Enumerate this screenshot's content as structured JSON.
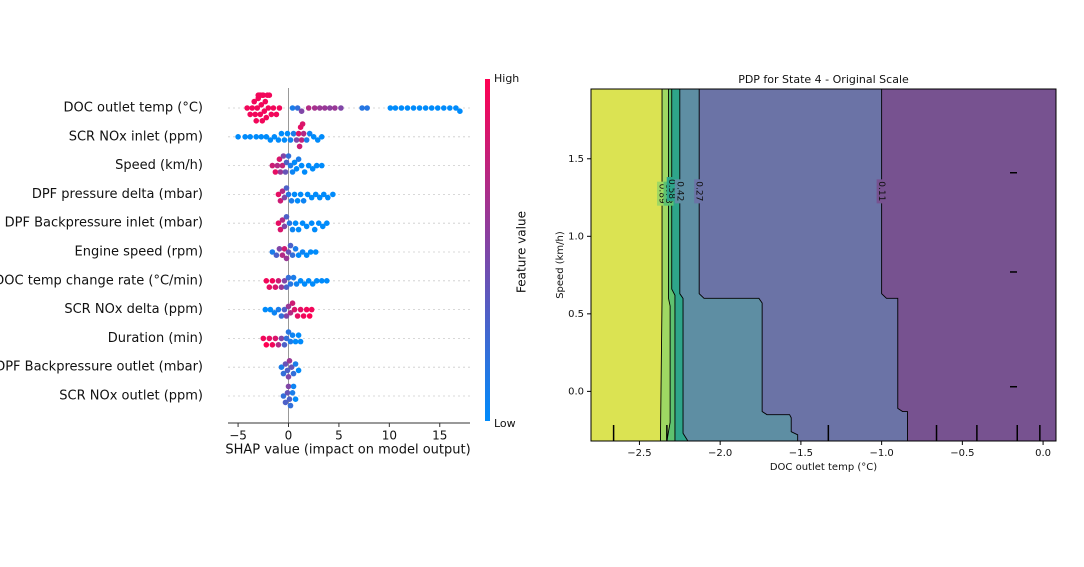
{
  "chart_data": [
    {
      "type": "beeswarm",
      "xlabel": "SHAP value (impact on model output)",
      "xlim": [
        -6,
        18
      ],
      "xticks": [
        {
          "value": -5,
          "label": "−5"
        },
        0,
        5,
        10,
        15
      ],
      "colorbar": {
        "label": "Feature value",
        "high": "High",
        "low": "Low",
        "low_color": "#008bfb",
        "high_color": "#ff0052"
      },
      "rows": [
        {
          "name": "DOC outlet temp (°C)",
          "values": [
            -4.1,
            -3.8,
            -3.6,
            -3.4,
            -3.3,
            -3.2,
            -3.1,
            -3.0,
            -3.0,
            -2.9,
            -2.8,
            -2.8,
            -2.7,
            -2.6,
            -2.6,
            -2.5,
            -2.4,
            -2.3,
            -2.2,
            -2.1,
            -2.0,
            -1.9,
            -1.7,
            -1.5,
            -1.2,
            -0.9,
            0.4,
            0.9,
            1.3,
            2.0,
            2.6,
            3.1,
            3.6,
            4.1,
            4.6,
            5.2,
            7.3,
            7.8,
            10.1,
            10.6,
            11.2,
            11.8,
            12.4,
            13.0,
            13.6,
            14.2,
            14.8,
            15.4,
            16.0,
            16.6,
            17.0
          ],
          "feature_values": [
            0.95,
            0.95,
            0.95,
            0.95,
            0.95,
            0.95,
            0.95,
            0.95,
            0.95,
            0.95,
            0.95,
            0.95,
            0.95,
            0.95,
            0.95,
            0.95,
            0.95,
            0.95,
            0.95,
            0.95,
            0.95,
            0.95,
            0.95,
            0.95,
            0.95,
            0.95,
            0.1,
            0.2,
            0.5,
            0.7,
            0.65,
            0.6,
            0.6,
            0.55,
            0.6,
            0.5,
            0.15,
            0.15,
            0,
            0,
            0,
            0,
            0,
            0,
            0,
            0,
            0,
            0,
            0,
            0,
            0
          ]
        },
        {
          "name": "SCR NOx inlet (ppm)",
          "values": [
            -5.0,
            -4.3,
            -3.8,
            -3.2,
            -2.7,
            -2.2,
            -1.8,
            -1.4,
            -1.0,
            -0.7,
            -0.4,
            -0.1,
            0.2,
            0.5,
            0.8,
            1.0,
            1.1,
            1.2,
            1.3,
            1.4,
            1.5,
            1.8,
            2.1,
            2.5,
            2.9,
            3.3
          ],
          "feature_values": [
            0,
            0,
            0,
            0,
            0,
            0,
            0,
            0,
            0,
            0,
            0,
            0,
            0.05,
            0.1,
            0.5,
            0.85,
            0.8,
            0.9,
            0.75,
            0.85,
            0.7,
            0.1,
            0.05,
            0,
            0,
            0
          ]
        },
        {
          "name": "Speed (km/h)",
          "values": [
            -1.6,
            -1.3,
            -1.1,
            -0.9,
            -0.8,
            -0.6,
            -0.5,
            -0.3,
            -0.2,
            0.0,
            0.2,
            0.4,
            0.6,
            0.8,
            1.0,
            1.3,
            1.6,
            2.0,
            2.4,
            2.8,
            3.3
          ],
          "feature_values": [
            0.8,
            0.9,
            0.7,
            0.85,
            0.6,
            0.75,
            0.5,
            0.4,
            0.3,
            0.2,
            0.1,
            0.05,
            0,
            0,
            0.1,
            0,
            0,
            0,
            0,
            0,
            0
          ]
        },
        {
          "name": "DPF pressure delta (mbar)",
          "values": [
            -1.0,
            -0.8,
            -0.6,
            -0.4,
            -0.2,
            0.0,
            0.3,
            0.6,
            0.9,
            1.2,
            1.5,
            1.9,
            2.3,
            2.7,
            3.1,
            3.5,
            3.9,
            4.4
          ],
          "feature_values": [
            0.9,
            0.8,
            0.7,
            0.5,
            0.3,
            0.15,
            0.1,
            0,
            0,
            0,
            0.05,
            0,
            0,
            0,
            0,
            0,
            0,
            0
          ]
        },
        {
          "name": "DPF Backpressure inlet (mbar)",
          "values": [
            -1.0,
            -0.8,
            -0.6,
            -0.4,
            -0.2,
            0.1,
            0.4,
            0.7,
            1.0,
            1.4,
            1.8,
            2.3,
            2.6,
            3.0,
            3.4,
            3.8
          ],
          "feature_values": [
            0.9,
            0.85,
            0.7,
            0.5,
            0.3,
            0.15,
            0.05,
            0,
            0,
            0,
            0,
            0,
            0,
            0,
            0,
            0
          ]
        },
        {
          "name": "Engine speed (rpm)",
          "values": [
            -1.6,
            -1.2,
            -0.9,
            -0.6,
            -0.4,
            -0.2,
            0.0,
            0.2,
            0.4,
            0.7,
            1.0,
            1.4,
            1.8,
            2.2,
            2.7
          ],
          "feature_values": [
            0.1,
            0.3,
            0.5,
            0.7,
            0.8,
            0.6,
            0.4,
            0.3,
            0.2,
            0.1,
            0,
            0.05,
            0,
            0,
            0
          ]
        },
        {
          "name": "DOC temp change rate (°C/min)",
          "values": [
            -2.2,
            -1.9,
            -1.6,
            -1.3,
            -1.0,
            -0.7,
            -0.4,
            -0.2,
            0.0,
            0.2,
            0.5,
            0.8,
            1.2,
            1.6,
            2.0,
            2.4,
            2.8,
            3.3,
            3.8
          ],
          "feature_values": [
            0.95,
            0.9,
            0.95,
            0.85,
            0.8,
            0.6,
            0.5,
            0.3,
            0.2,
            0.15,
            0.1,
            0.05,
            0,
            0,
            0,
            0,
            0,
            0,
            0
          ]
        },
        {
          "name": "SCR NOx delta (ppm)",
          "values": [
            -2.3,
            -1.8,
            -1.4,
            -1.0,
            -0.7,
            -0.4,
            -0.2,
            0.0,
            0.2,
            0.4,
            0.6,
            0.9,
            1.2,
            1.5,
            1.8,
            2.1,
            2.3
          ],
          "feature_values": [
            0,
            0,
            0.05,
            0.1,
            0.2,
            0.3,
            0.5,
            0.6,
            0.7,
            0.8,
            0.85,
            0.9,
            0.9,
            0.95,
            0.95,
            1.0,
            0.95
          ]
        },
        {
          "name": "Duration (min)",
          "values": [
            -2.5,
            -2.2,
            -1.9,
            -1.6,
            -1.3,
            -1.0,
            -0.7,
            -0.4,
            -0.2,
            0.0,
            0.2,
            0.4,
            0.7,
            1.0,
            1.2
          ],
          "feature_values": [
            0.95,
            1.0,
            0.9,
            0.95,
            0.85,
            0.7,
            0.5,
            0.3,
            0.2,
            0.15,
            0.1,
            0.05,
            0,
            0,
            0
          ]
        },
        {
          "name": "DPF Backpressure outlet (mbar)",
          "values": [
            -0.7,
            -0.5,
            -0.3,
            -0.1,
            0.0,
            0.1,
            0.3,
            0.5,
            0.7,
            1.0
          ],
          "feature_values": [
            0.1,
            0.2,
            0.4,
            0.3,
            0.5,
            0.6,
            0.4,
            0.2,
            0.1,
            0
          ]
        },
        {
          "name": "SCR NOx outlet (ppm)",
          "values": [
            -0.5,
            -0.3,
            -0.1,
            0.0,
            0.1,
            0.2,
            0.4,
            0.5,
            0.7
          ],
          "feature_values": [
            0.2,
            0.3,
            0.4,
            0.5,
            0.3,
            0.2,
            0.1,
            0.05,
            0
          ]
        }
      ]
    },
    {
      "type": "contour",
      "title": "PDP for State 4 - Original Scale",
      "xlabel": "DOC outlet temp (°C)",
      "ylabel": "Speed (km/h)",
      "xlim": [
        -2.8,
        0.08
      ],
      "ylim": [
        -0.32,
        1.95
      ],
      "xticks": [
        {
          "value": -2.5,
          "label": "−2.5"
        },
        {
          "value": -2.0,
          "label": "−2.0"
        },
        {
          "value": -1.5,
          "label": "−1.5"
        },
        {
          "value": -1.0,
          "label": "−1.0"
        },
        {
          "value": -0.5,
          "label": "−0.5"
        },
        {
          "value": 0,
          "label": "0.0"
        }
      ],
      "yticks": [
        {
          "value": 0,
          "label": "0.0"
        },
        0.5,
        {
          "value": 1,
          "label": "1.0"
        },
        1.5
      ],
      "base_color": "#dbe352",
      "contours": [
        {
          "level": 0.89,
          "color": "#9fd863",
          "x": [
            -2.36,
            -2.36,
            -2.37
          ],
          "y": [
            1.95,
            0.6,
            -0.32
          ]
        },
        {
          "level": 0.73,
          "color": "#5ec26f",
          "x": [
            -2.32,
            -2.32,
            -2.31,
            -2.31,
            -2.33
          ],
          "y": [
            1.95,
            0.6,
            0.55,
            -0.2,
            -0.32
          ]
        },
        {
          "level": 0.58,
          "color": "#2ea58a",
          "x": [
            -2.3,
            -2.3,
            -2.28,
            -2.28
          ],
          "y": [
            1.95,
            0.66,
            0.62,
            -0.32
          ]
        },
        {
          "level": 0.42,
          "color": "#5e8ea3",
          "x": [
            -2.25,
            -2.25,
            -2.23,
            -2.23,
            -2.2
          ],
          "y": [
            1.95,
            0.63,
            0.6,
            -0.27,
            -0.32
          ]
        },
        {
          "level": 0.27,
          "color": "#6b73a6",
          "x": [
            -2.13,
            -2.13,
            -2.1,
            -1.76,
            -1.74,
            -1.74,
            -1.71,
            -1.57,
            -1.56,
            -1.56,
            -1.52,
            -1.52
          ],
          "y": [
            1.95,
            0.63,
            0.6,
            0.6,
            0.57,
            -0.13,
            -0.15,
            -0.15,
            -0.17,
            -0.26,
            -0.28,
            -0.32
          ]
        },
        {
          "level": 0.11,
          "color": "#775290",
          "x": [
            -1.0,
            -1.0,
            -0.97,
            -0.9,
            -0.9,
            -0.87,
            -0.84,
            -0.84
          ],
          "y": [
            1.95,
            0.63,
            0.6,
            0.6,
            -0.11,
            -0.13,
            -0.13,
            -0.32
          ]
        }
      ],
      "rug_x": [
        -2.66,
        -2.33,
        -1.33,
        -0.66,
        -0.41,
        -0.16,
        -0.02
      ],
      "rug_y": [
        1.41,
        0.77,
        0.03
      ]
    }
  ]
}
